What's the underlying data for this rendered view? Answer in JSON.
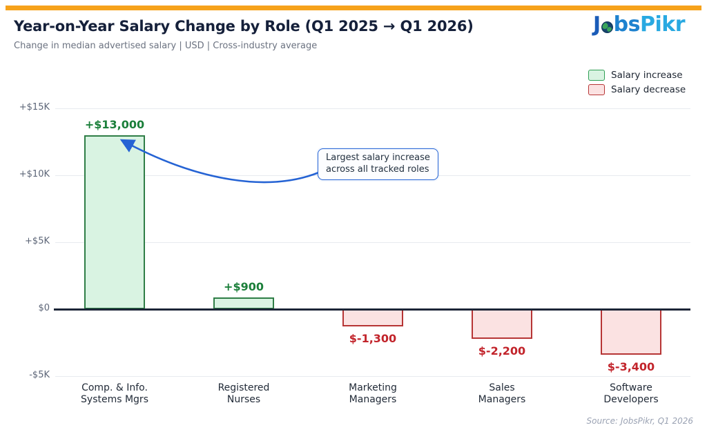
{
  "header": {
    "title": "Year-on-Year Salary Change by Role  (Q1 2025 → Q1 2026)",
    "subtitle": "Change in median advertised salary  |  USD  |  Cross-industry average"
  },
  "logo": {
    "part_j": "J",
    "part_bs": "bs",
    "part_pikr": "Pikr",
    "globe_icon": "globe"
  },
  "colors": {
    "accent_orange": "#F6A21B",
    "annotation_blue": "#2563d4",
    "increase_fill": "#d9f3e2",
    "increase_border": "#2e7d46",
    "increase_text": "#1b7f3a",
    "decrease_fill": "#fbe2e2",
    "decrease_border": "#b63434",
    "decrease_text": "#c2242b",
    "zero_axis": "#1c2537",
    "title_navy": "#15203a"
  },
  "chart_data": {
    "type": "bar",
    "title": "Year-on-Year Salary Change by Role  (Q1 2025 → Q1 2026)",
    "subtitle": "Change in median advertised salary | USD | Cross-industry average",
    "categories": [
      "Comp. & Info.\nSystems Mgrs",
      "Registered\nNurses",
      "Marketing\nManagers",
      "Sales\nManagers",
      "Software\nDevelopers"
    ],
    "values": [
      13000,
      900,
      -1300,
      -2200,
      -3400
    ],
    "value_labels": [
      "+$13,000",
      "+$900",
      "$-1,300",
      "$-2,200",
      "$-3,400"
    ],
    "y_ticks": [
      "+$15K",
      "+$10K",
      "+$5K",
      "$0",
      "-$5K"
    ],
    "y_tick_values": [
      15000,
      10000,
      5000,
      0,
      -5000
    ],
    "ylim": [
      -5000,
      15000
    ],
    "xlabel": "",
    "ylabel": "",
    "grid": true,
    "legend_position": "top-right",
    "legend": [
      {
        "label": "Salary increase",
        "fill": "#d9f3e2",
        "border": "#2e9e53"
      },
      {
        "label": "Salary decrease",
        "fill": "#fbe2e2",
        "border": "#b63434"
      }
    ],
    "annotation_line1": "Largest salary increase",
    "annotation_line2": "across all tracked roles",
    "source": "Source: JobsPikr, Q1 2026"
  }
}
